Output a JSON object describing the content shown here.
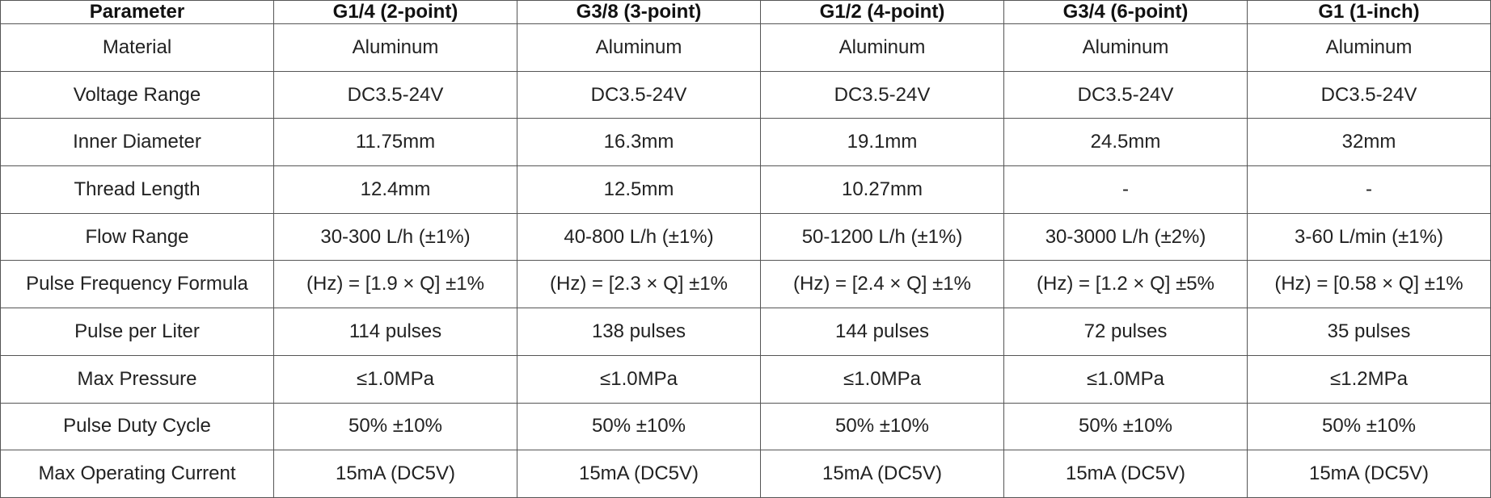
{
  "table": {
    "header": [
      "Parameter",
      "G1/4 (2-point)",
      "G3/8 (3-point)",
      "G1/2 (4-point)",
      "G3/4 (6-point)",
      "G1 (1-inch)"
    ],
    "rows": [
      [
        "Material",
        "Aluminum",
        "Aluminum",
        "Aluminum",
        "Aluminum",
        "Aluminum"
      ],
      [
        "Voltage Range",
        "DC3.5-24V",
        "DC3.5-24V",
        "DC3.5-24V",
        "DC3.5-24V",
        "DC3.5-24V"
      ],
      [
        "Inner Diameter",
        "11.75mm",
        "16.3mm",
        "19.1mm",
        "24.5mm",
        "32mm"
      ],
      [
        "Thread Length",
        "12.4mm",
        "12.5mm",
        "10.27mm",
        "-",
        "-"
      ],
      [
        "Flow Range",
        "30-300 L/h (±1%)",
        "40-800 L/h (±1%)",
        "50-1200 L/h (±1%)",
        "30-3000 L/h (±2%)",
        "3-60 L/min (±1%)"
      ],
      [
        "Pulse Frequency Formula",
        "(Hz) = [1.9 × Q] ±1%",
        "(Hz) = [2.3 × Q] ±1%",
        "(Hz) = [2.4 × Q] ±1%",
        "(Hz) = [1.2 × Q] ±5%",
        "(Hz) = [0.58 × Q] ±1%"
      ],
      [
        "Pulse per Liter",
        "114 pulses",
        "138 pulses",
        "144 pulses",
        "72 pulses",
        "35 pulses"
      ],
      [
        "Max Pressure",
        "≤1.0MPa",
        "≤1.0MPa",
        "≤1.0MPa",
        "≤1.0MPa",
        "≤1.2MPa"
      ],
      [
        "Pulse Duty Cycle",
        "50% ±10%",
        "50% ±10%",
        "50% ±10%",
        "50% ±10%",
        "50% ±10%"
      ],
      [
        "Max Operating Current",
        "15mA (DC5V)",
        "15mA (DC5V)",
        "15mA (DC5V)",
        "15mA (DC5V)",
        "15mA (DC5V)"
      ]
    ]
  }
}
